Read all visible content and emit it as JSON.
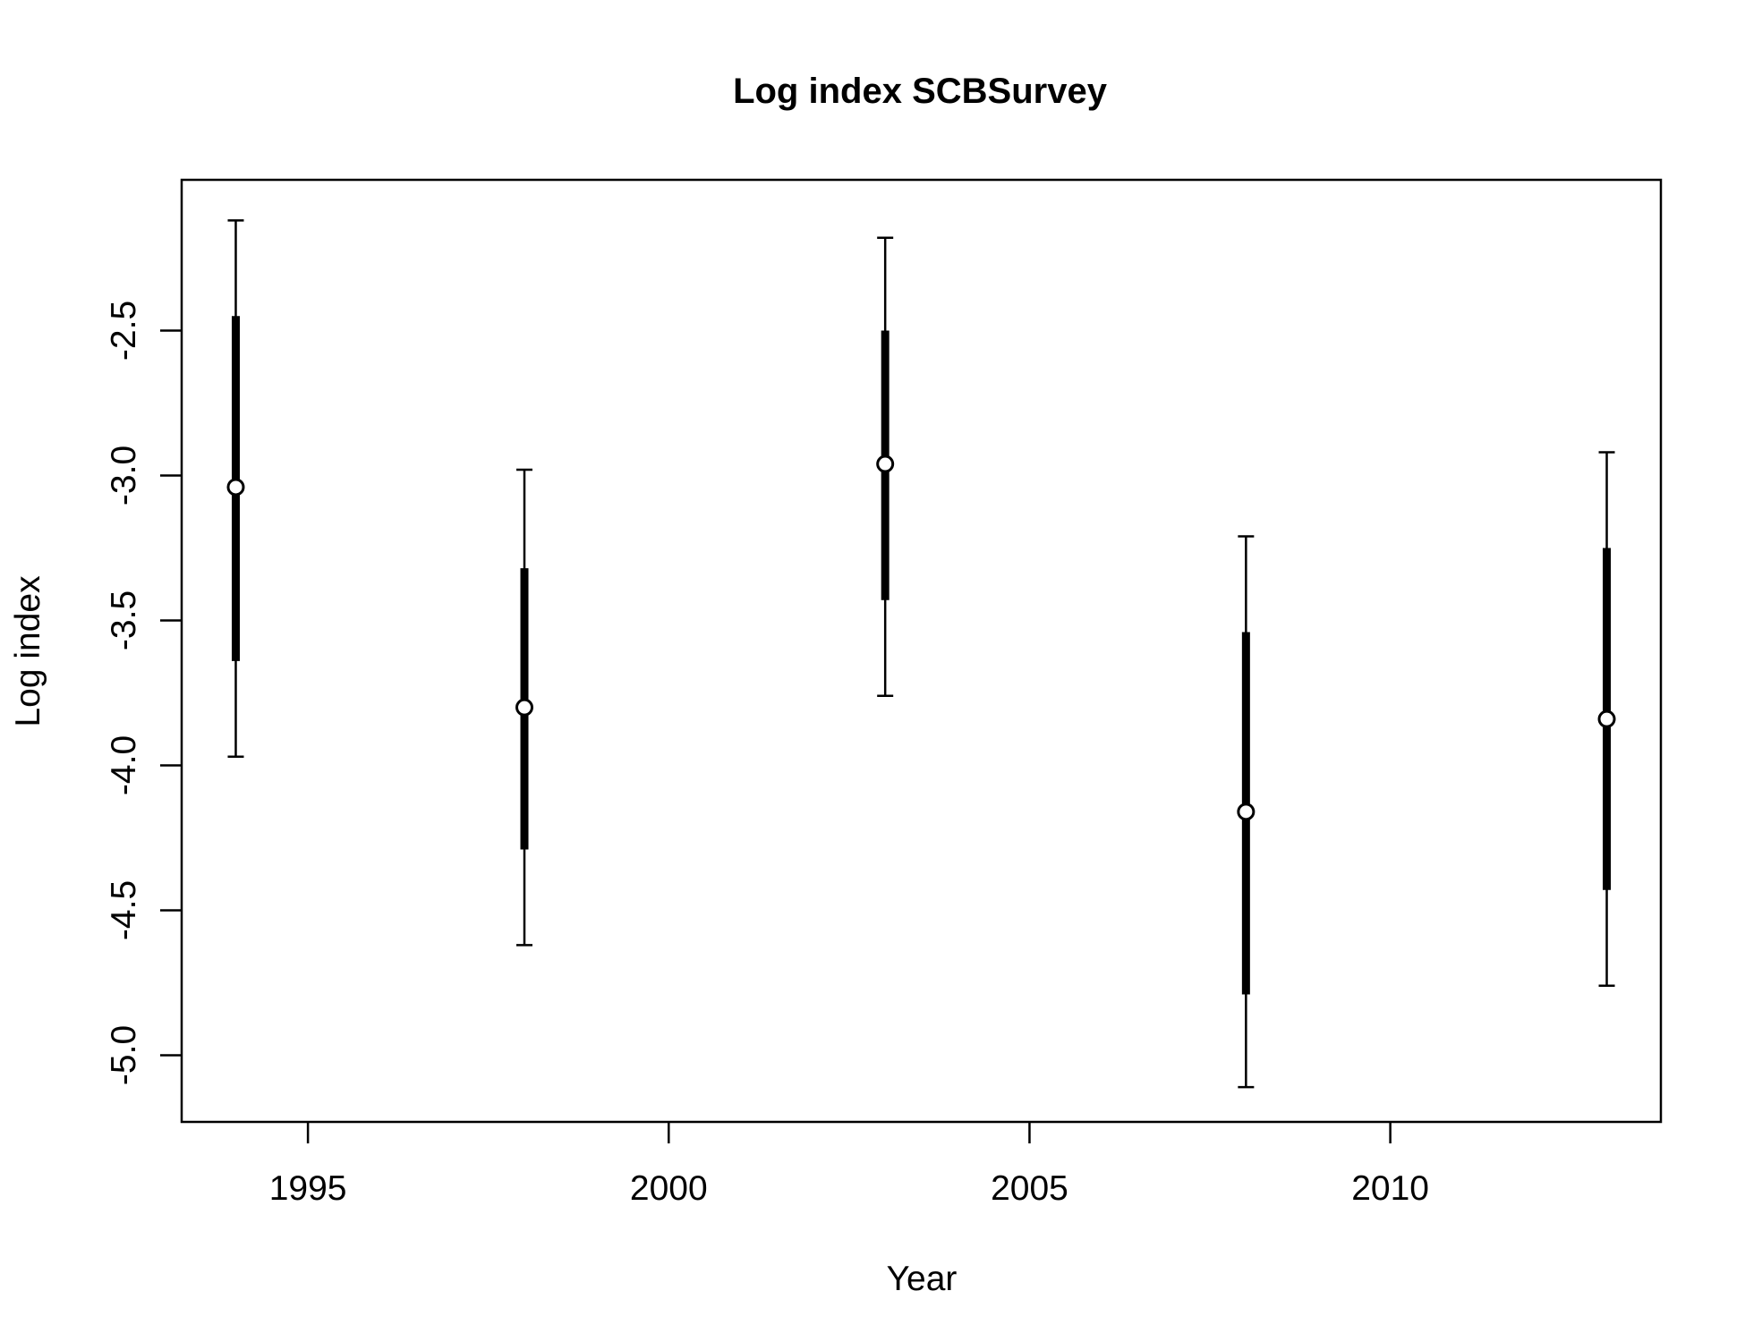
{
  "chart_data": {
    "type": "scatter",
    "title": "Log index SCBSurvey",
    "xlabel": "Year",
    "ylabel": "Log index",
    "xlim": [
      1993.25,
      2013.75
    ],
    "ylim": [
      -5.23,
      -1.98
    ],
    "x_ticks": [
      1995,
      2000,
      2005,
      2010
    ],
    "x_tick_labels": [
      "1995",
      "2000",
      "2005",
      "2010"
    ],
    "y_ticks": [
      -2.5,
      -3.0,
      -3.5,
      -4.0,
      -4.5,
      -5.0
    ],
    "y_tick_labels": [
      "-2.5",
      "-3.0",
      "-3.5",
      "-4.0",
      "-4.5",
      "-5.0"
    ],
    "grid": false,
    "legend": "none",
    "series": [
      {
        "points": [
          {
            "x": 1994,
            "y": -3.04,
            "lo_inner": -3.64,
            "hi_inner": -2.45,
            "lo_outer": -3.97,
            "hi_outer": -2.12
          },
          {
            "x": 1998,
            "y": -3.8,
            "lo_inner": -4.29,
            "hi_inner": -3.32,
            "lo_outer": -4.62,
            "hi_outer": -2.98
          },
          {
            "x": 2003,
            "y": -2.96,
            "lo_inner": -3.43,
            "hi_inner": -2.5,
            "lo_outer": -3.76,
            "hi_outer": -2.18
          },
          {
            "x": 2008,
            "y": -4.16,
            "lo_inner": -4.79,
            "hi_inner": -3.54,
            "lo_outer": -5.11,
            "hi_outer": -3.21
          },
          {
            "x": 2013,
            "y": -3.84,
            "lo_inner": -4.43,
            "hi_inner": -3.25,
            "lo_outer": -4.76,
            "hi_outer": -2.92
          }
        ]
      }
    ]
  },
  "colors": {
    "foreground": "#000000",
    "background": "#ffffff",
    "point_fill": "#ffffff"
  }
}
